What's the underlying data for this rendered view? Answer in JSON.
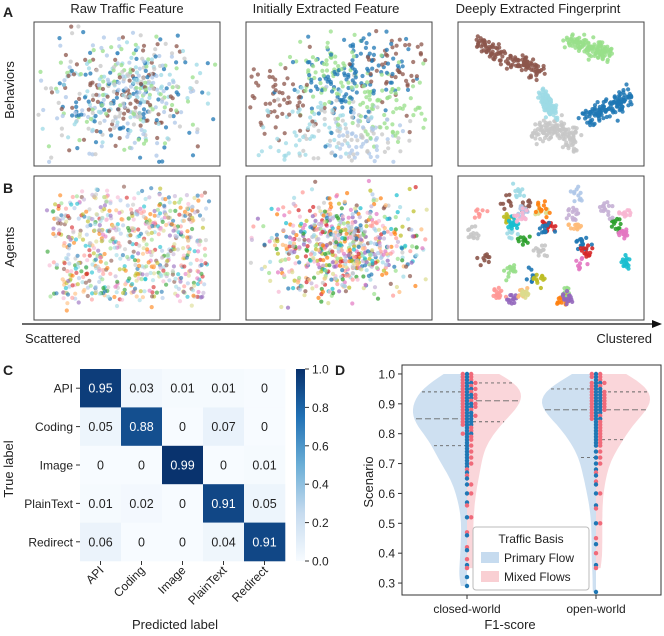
{
  "panels": {
    "A": "A",
    "B": "B",
    "C": "C",
    "D": "D"
  },
  "embedding": {
    "columns": [
      "Raw Traffic Feature",
      "Initially Extracted Feature",
      "Deeply Extracted Fingerprint"
    ],
    "rows": [
      "Behaviors",
      "Agents"
    ],
    "axis_start": "Scattered",
    "axis_end": "Clustered",
    "colors": [
      "#8c564b",
      "#1f77b4",
      "#98df8a",
      "#9edae5",
      "#c7c7c7",
      "#aec7e8",
      "#2ca02c",
      "#ff9896",
      "#e377c2",
      "#bcbd22",
      "#9467bd",
      "#ff7f0e",
      "#d62728",
      "#17becf",
      "#f7b6d2",
      "#c5b0d5",
      "#ffbb78",
      "#dbdb8d"
    ]
  },
  "chart_data": [
    {
      "type": "heatmap",
      "panel": "C",
      "rows": [
        "API",
        "Coding",
        "Image",
        "PlainText",
        "Redirect"
      ],
      "columns": [
        "API",
        "Coding",
        "Image",
        "PlainText",
        "Redirect"
      ],
      "values": [
        [
          0.95,
          0.03,
          0.01,
          0.01,
          0
        ],
        [
          0.05,
          0.88,
          0,
          0.07,
          0
        ],
        [
          0,
          0,
          0.99,
          0,
          0.01
        ],
        [
          0.01,
          0.02,
          0,
          0.91,
          0.05
        ],
        [
          0.06,
          0,
          0,
          0.04,
          0.91
        ]
      ],
      "cell_labels": [
        [
          "0.95",
          "0.03",
          "0.01",
          "0.01",
          "0"
        ],
        [
          "0.05",
          "0.88",
          "0",
          "0.07",
          "0"
        ],
        [
          "0",
          "0",
          "0.99",
          "0",
          "0.01"
        ],
        [
          "0.01",
          "0.02",
          "0",
          "0.91",
          "0.05"
        ],
        [
          "0.06",
          "0",
          "0",
          "0.04",
          "0.91"
        ]
      ],
      "xlabel": "Predicted label",
      "ylabel": "True label",
      "colorbar_ticks": [
        0.0,
        0.2,
        0.4,
        0.6,
        0.8,
        1.0
      ],
      "colorbar_tick_labels": [
        "0.0",
        "0.2",
        "0.4",
        "0.6",
        "0.8",
        "1.0"
      ],
      "colormap": "Blues"
    },
    {
      "type": "violin",
      "panel": "D",
      "categories": [
        "closed-world",
        "open-world"
      ],
      "xlabel": "F1-score",
      "ylabel": "Scenario",
      "ylim": [
        0.26,
        1.03
      ],
      "yticks": [
        0.3,
        0.4,
        0.5,
        0.6,
        0.7,
        0.8,
        0.9,
        1.0
      ],
      "ytick_labels": [
        "0.3",
        "0.4",
        "0.5",
        "0.6",
        "0.7",
        "0.8",
        "0.9",
        "1.0"
      ],
      "legend_title": "Traffic Basis",
      "legend_position": "lower-right",
      "series": [
        {
          "name": "Primary Flow",
          "color": "#1f77b4",
          "fill": "#c6dbef",
          "quartiles": [
            [
              0.76,
              0.85,
              0.94
            ],
            [
              0.72,
              0.88,
              0.95
            ]
          ],
          "range": [
            [
              0.29,
              1.0
            ],
            [
              0.27,
              1.0
            ]
          ],
          "values": [
            [
              1.0,
              0.99,
              0.98,
              0.97,
              0.97,
              0.96,
              0.95,
              0.95,
              0.94,
              0.93,
              0.93,
              0.92,
              0.92,
              0.91,
              0.9,
              0.9,
              0.89,
              0.89,
              0.88,
              0.87,
              0.87,
              0.86,
              0.86,
              0.85,
              0.85,
              0.84,
              0.84,
              0.83,
              0.83,
              0.82,
              0.81,
              0.8,
              0.8,
              0.79,
              0.78,
              0.77,
              0.76,
              0.75,
              0.74,
              0.73,
              0.72,
              0.71,
              0.7,
              0.69,
              0.67,
              0.65,
              0.63,
              0.6,
              0.57,
              0.52,
              0.46,
              0.41,
              0.36,
              0.32,
              0.29
            ],
            [
              1.0,
              0.99,
              0.98,
              0.97,
              0.97,
              0.96,
              0.95,
              0.95,
              0.94,
              0.94,
              0.93,
              0.93,
              0.92,
              0.92,
              0.91,
              0.91,
              0.9,
              0.9,
              0.89,
              0.89,
              0.88,
              0.88,
              0.87,
              0.87,
              0.86,
              0.85,
              0.85,
              0.84,
              0.83,
              0.82,
              0.81,
              0.8,
              0.79,
              0.78,
              0.77,
              0.76,
              0.74,
              0.72,
              0.7,
              0.68,
              0.66,
              0.63,
              0.6,
              0.56,
              0.5,
              0.43,
              0.36,
              0.27
            ]
          ]
        },
        {
          "name": "Mixed Flows",
          "color": "#f06a7a",
          "fill": "#f9cfd3",
          "quartiles": [
            [
              0.84,
              0.91,
              0.97
            ],
            [
              0.78,
              0.88,
              0.94
            ]
          ],
          "range": [
            [
              0.35,
              1.0
            ],
            [
              0.35,
              1.0
            ]
          ],
          "values": [
            [
              1.0,
              1.0,
              0.99,
              0.99,
              0.98,
              0.98,
              0.97,
              0.97,
              0.96,
              0.96,
              0.95,
              0.95,
              0.94,
              0.94,
              0.93,
              0.93,
              0.92,
              0.92,
              0.91,
              0.91,
              0.9,
              0.9,
              0.89,
              0.89,
              0.88,
              0.88,
              0.87,
              0.86,
              0.86,
              0.85,
              0.84,
              0.83,
              0.82,
              0.81,
              0.8,
              0.79,
              0.78,
              0.76,
              0.74,
              0.72,
              0.7,
              0.68,
              0.66,
              0.63,
              0.6,
              0.56,
              0.52,
              0.47,
              0.42,
              0.38,
              0.35
            ],
            [
              1.0,
              1.0,
              0.99,
              0.99,
              0.98,
              0.97,
              0.97,
              0.96,
              0.96,
              0.95,
              0.94,
              0.94,
              0.93,
              0.93,
              0.92,
              0.92,
              0.91,
              0.91,
              0.9,
              0.9,
              0.89,
              0.89,
              0.88,
              0.88,
              0.87,
              0.86,
              0.86,
              0.85,
              0.84,
              0.83,
              0.82,
              0.81,
              0.8,
              0.79,
              0.78,
              0.77,
              0.76,
              0.74,
              0.72,
              0.7,
              0.67,
              0.64,
              0.6,
              0.55,
              0.5,
              0.45,
              0.4,
              0.35
            ]
          ]
        }
      ]
    }
  ]
}
